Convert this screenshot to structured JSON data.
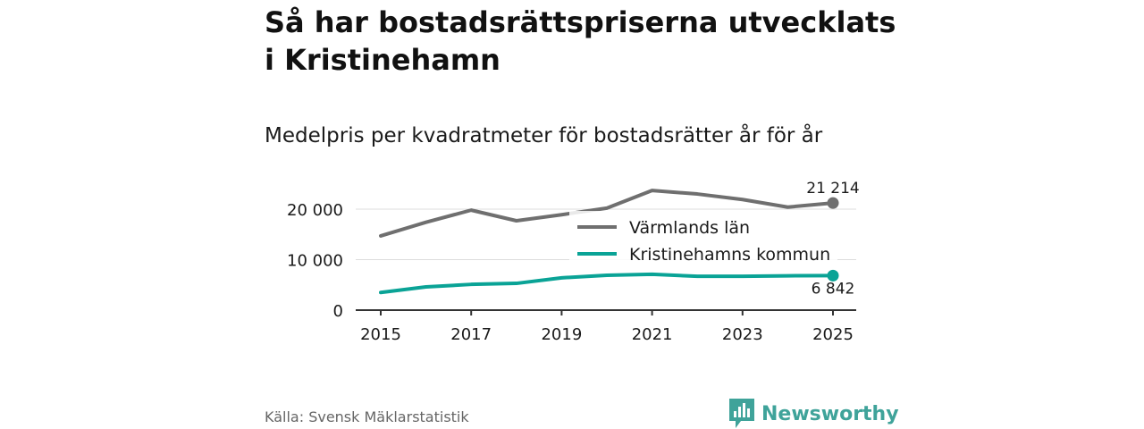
{
  "title": "Så har bostadsrättspriserna utvecklats i Kristinehamn",
  "subtitle": "Medelpris per kvadratmeter för bostadsrätter år för år",
  "source": "Källa: Svensk Mäklarstatistik",
  "brand": {
    "name": "Newsworthy",
    "icon": "newsworthy-logo-icon"
  },
  "colors": {
    "lan": "#6f6f6f",
    "kommun": "#0aa396",
    "grid": "#dddddd",
    "axis": "#333333"
  },
  "chart_data": {
    "type": "line",
    "title": "Så har bostadsrättspriserna utvecklats i Kristinehamn",
    "subtitle": "Medelpris per kvadratmeter för bostadsrätter år för år",
    "x": [
      2015,
      2016,
      2017,
      2018,
      2019,
      2020,
      2021,
      2022,
      2023,
      2024,
      2025
    ],
    "xticks": [
      2015,
      2017,
      2019,
      2021,
      2023,
      2025
    ],
    "xtick_labels": [
      "2015",
      "2017",
      "2019",
      "2021",
      "2023",
      "2025"
    ],
    "yticks": [
      0,
      10000,
      20000
    ],
    "ytick_labels": [
      "0",
      "10 000",
      "20 000"
    ],
    "ylim": [
      0,
      23000
    ],
    "grid": true,
    "legend_position": "center-right",
    "series": [
      {
        "name": "Värmlands län",
        "color": "#6f6f6f",
        "values": [
          14700,
          17400,
          19800,
          17700,
          18900,
          20200,
          23700,
          23000,
          21900,
          20400,
          21214
        ],
        "end_label": "21 214"
      },
      {
        "name": "Kristinehamns kommun",
        "color": "#0aa396",
        "values": [
          3500,
          4600,
          5100,
          5300,
          6400,
          6900,
          7100,
          6700,
          6700,
          6800,
          6842
        ],
        "end_label": "6 842"
      }
    ]
  }
}
